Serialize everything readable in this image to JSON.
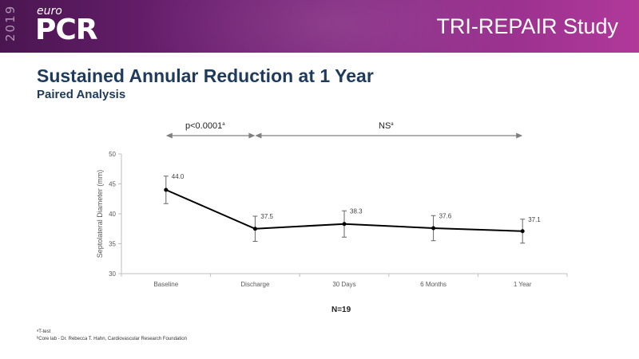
{
  "header": {
    "logo_year": "2019",
    "logo_euro": "euro",
    "logo_pcr": "PCR",
    "study_title": "TRI-REPAIR Study"
  },
  "slide": {
    "title": "Sustained Annular Reduction at 1 Year",
    "subtitle": "Paired Analysis"
  },
  "annotations": {
    "left_bracket": "p<0.0001",
    "left_sup": "a",
    "right_bracket": "NS",
    "right_sup": "a"
  },
  "n_label": "N=19",
  "footnotes": [
    "ᵃT-test",
    "ᵇCore lab - Dr. Rebecca T. Hahn, Cardiovascular Research Foundation"
  ],
  "colors": {
    "line": "#000000",
    "error_bar": "#666666",
    "axis": "#bfbfbf",
    "arrow": "#7f7f7f",
    "title": "#1f3a5a"
  },
  "chart_data": {
    "type": "line",
    "categories": [
      "Baseline",
      "Discharge",
      "30 Days",
      "6 Months",
      "1 Year"
    ],
    "series": [
      {
        "values": [
          44.0,
          37.5,
          38.3,
          37.6,
          37.1
        ],
        "data_labels": [
          "44.0",
          "37.5",
          "38.3",
          "37.6",
          "37.1"
        ],
        "error": [
          2.3,
          2.1,
          2.2,
          2.1,
          2.0
        ]
      }
    ],
    "ylabel": "Septolateral Diameter (mm)",
    "xlabel": "",
    "ylim": [
      30,
      50
    ],
    "yticks": [
      30,
      35,
      40,
      45,
      50
    ],
    "ytick_labels": [
      "30",
      "35",
      "40",
      "45",
      "50"
    ],
    "grid": false,
    "legend": "none"
  }
}
